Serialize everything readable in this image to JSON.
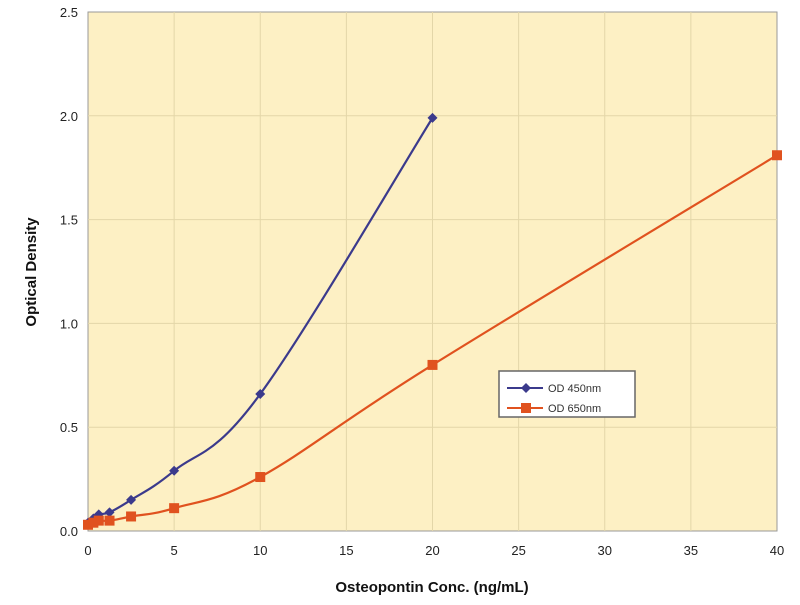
{
  "chart_data": {
    "type": "line",
    "title": "",
    "xlabel": "Osteopontin Conc. (ng/mL)",
    "ylabel": "Optical Density",
    "xlim": [
      0,
      40
    ],
    "ylim": [
      0,
      2.5
    ],
    "xticks": [
      0,
      5,
      10,
      15,
      20,
      25,
      30,
      35,
      40
    ],
    "xtick_labels": [
      "0",
      "5",
      "10",
      "15",
      "20",
      "25",
      "30",
      "35",
      "40"
    ],
    "yticks": [
      0,
      0.5,
      1.0,
      1.5,
      2.0,
      2.5
    ],
    "ytick_labels": [
      "0.0",
      "0.5",
      "1.0",
      "1.5",
      "2.0",
      "2.5"
    ],
    "grid": true,
    "legend_position": "center-right",
    "background_color": "#fdf0c4",
    "series": [
      {
        "name": "OD 450nm",
        "color": "#3b3a8c",
        "marker": "diamond",
        "x": [
          0,
          0.3125,
          0.625,
          1.25,
          2.5,
          5,
          10,
          20
        ],
        "y": [
          0.04,
          0.06,
          0.08,
          0.09,
          0.15,
          0.29,
          0.66,
          1.99
        ]
      },
      {
        "name": "OD 650nm",
        "color": "#e0521f",
        "marker": "square",
        "x": [
          0,
          0.3125,
          0.625,
          1.25,
          2.5,
          5,
          10,
          20,
          40
        ],
        "y": [
          0.03,
          0.04,
          0.05,
          0.05,
          0.07,
          0.11,
          0.26,
          0.8,
          1.81
        ]
      }
    ]
  }
}
